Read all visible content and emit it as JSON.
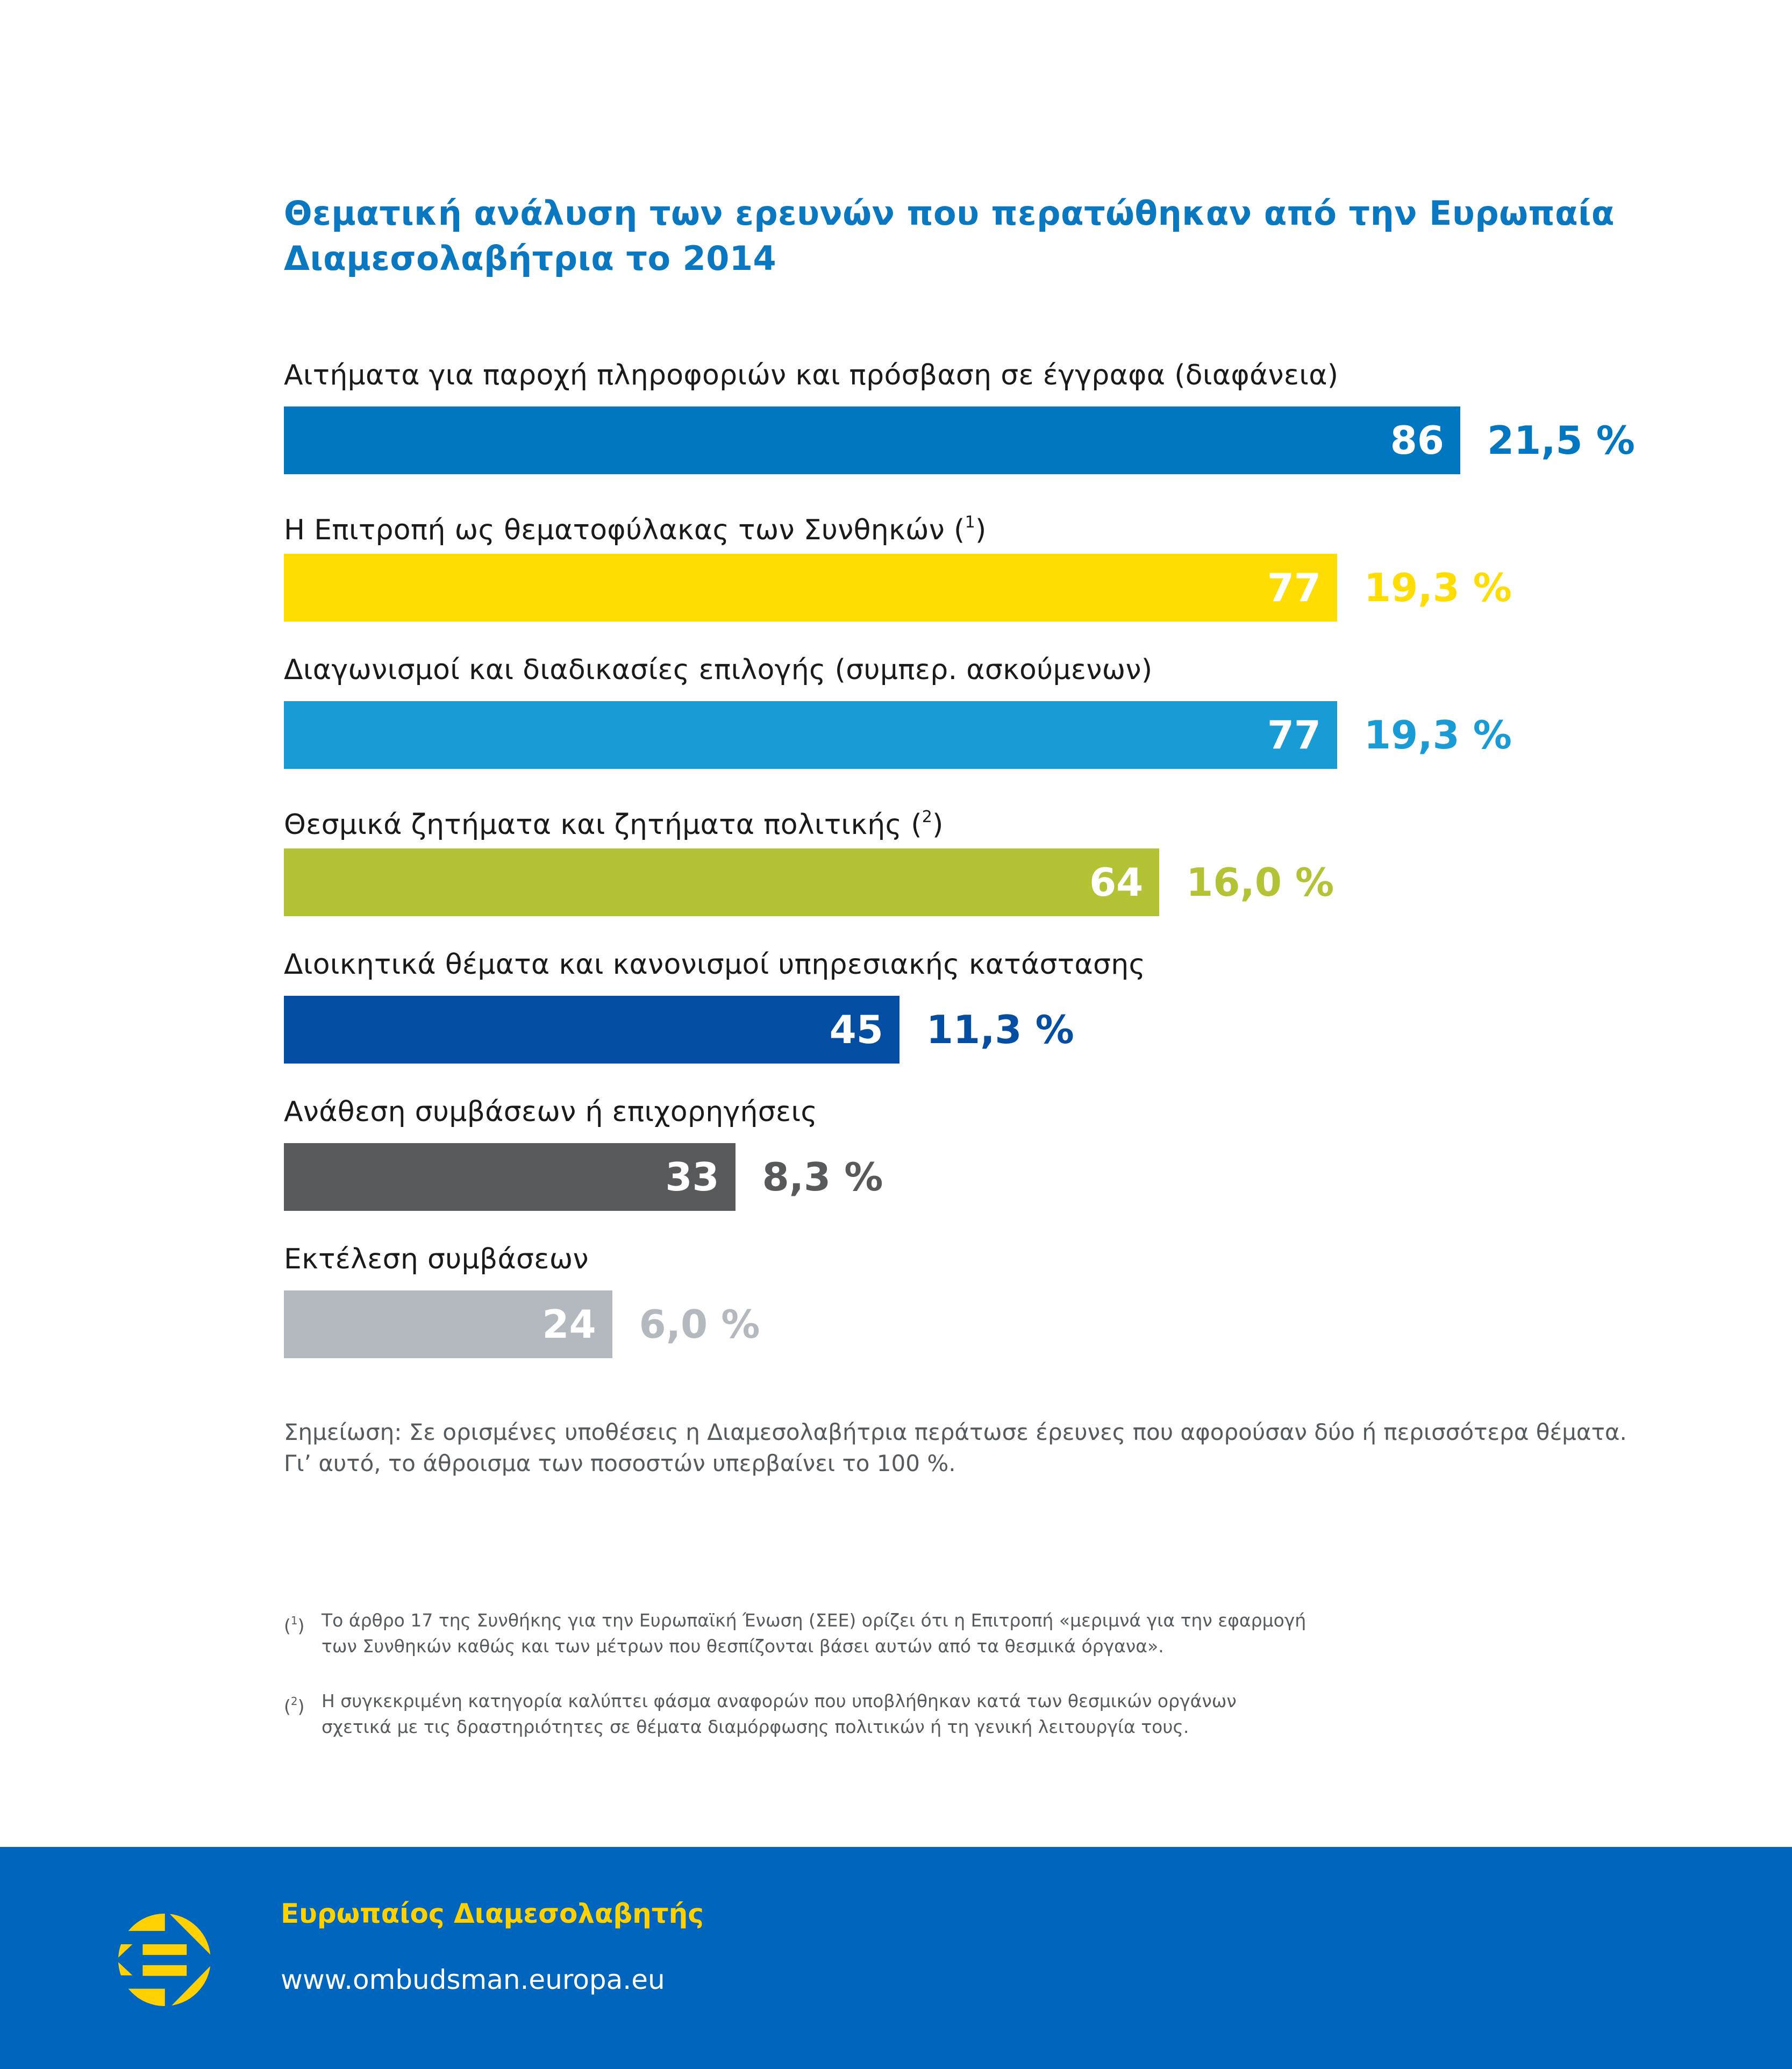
{
  "chart_data": {
    "type": "bar",
    "orientation": "horizontal",
    "title": "Θεματική ανάλυση των ερευνών που περατώθηκαν από την Ευρωπαία Διαμεσολαβήτρια το 2014",
    "title_lines": [
      "Θεματική ανάλυση των ερευνών που περατώθηκαν από την Ευρωπαία",
      "Διαμεσολαβήτρια το 2014"
    ],
    "xlabel": "",
    "ylabel": "",
    "xlim": [
      0,
      86
    ],
    "grid": false,
    "legend": "none",
    "categories": [
      "Αιτήματα για παροχή πληροφοριών και πρόσβαση σε έγγραφα (διαφάνεια)",
      "Η Επιτροπή ως θεματοφύλακας των Συνθηκών",
      "Διαγωνισμοί και διαδικασίες επιλογής (συμπερ. ασκούμενων)",
      "Θεσμικά ζητήματα και ζητήματα πολιτικής",
      "Διοικητικά θέματα και κανονισμοί υπηρεσιακής κατάστασης",
      "Ανάθεση συμβάσεων ή επιχορηγήσεις",
      "Εκτέλεση συμβάσεων"
    ],
    "footnote_refs": [
      "",
      "1",
      "",
      "2",
      "",
      "",
      ""
    ],
    "values": [
      86,
      77,
      77,
      64,
      45,
      33,
      24
    ],
    "value_labels": [
      "86",
      "77",
      "77",
      "64",
      "45",
      "33",
      "24"
    ],
    "percent_labels": [
      "21,5 %",
      "19,3 %",
      "19,3 %",
      "16,0 %",
      "11,3 %",
      "8,3 %",
      "6,0 %"
    ],
    "colors": [
      "#0077c0",
      "#ffdd00",
      "#199bd6",
      "#b4c236",
      "#034ea2",
      "#58595b",
      "#b3b9be"
    ]
  },
  "note": {
    "lines": [
      "Σημείωση: Σε ορισμένες υποθέσεις η Διαμεσολαβήτρια περάτωσε έρευνες που αφορούσαν δύο ή περισσότερα θέματα.",
      "Γι’ αυτό, το άθροισμα των ποσοστών υπερβαίνει το 100 %."
    ]
  },
  "footnotes": [
    {
      "mark": "1",
      "lines": [
        "Το άρθρο 17 της Συνθήκης για την Ευρωπαϊκή Ένωση (ΣΕΕ) ορίζει ότι η Επιτροπή «μεριμνά για την εφαρμογή",
        "των Συνθηκών καθώς και των μέτρων που θεσπίζονται βάσει αυτών από τα θεσμικά όργανα»."
      ]
    },
    {
      "mark": "2",
      "lines": [
        "Η συγκεκριμένη κατηγορία καλύπτει φάσμα αναφορών που υποβλήθηκαν κατά των θεσμικών οργάνων",
        "σχετικά με τις δραστηριότητες σε θέματα διαμόρφωσης πολιτικών ή τη γενική λειτουργία τους."
      ]
    }
  ],
  "footer": {
    "org_name": "Ευρωπαίος Διαμεσολαβητής",
    "url": "www.ombudsman.europa.eu",
    "logo_icon": "european-ombudsman-logo-icon",
    "background_color": "#0065bd",
    "accent_color": "#ffd100"
  }
}
